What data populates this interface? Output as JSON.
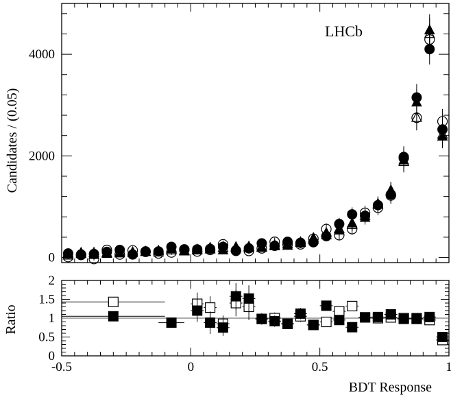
{
  "chart_data": [
    {
      "type": "scatter",
      "panel": "top",
      "ylabel": "Candidates / (0.05)",
      "annotation": "LHCb",
      "xlim": [
        -0.5,
        1.0
      ],
      "ylim": [
        -100,
        5000
      ],
      "yticks": [
        0,
        2000,
        4000
      ],
      "ytick_labels": [
        "0",
        "2000",
        "4000"
      ],
      "grid": false,
      "series": [
        {
          "marker": "filled-circle",
          "x": [
            -0.475,
            -0.425,
            -0.375,
            -0.325,
            -0.275,
            -0.225,
            -0.175,
            -0.125,
            -0.075,
            -0.025,
            0.025,
            0.075,
            0.125,
            0.175,
            0.225,
            0.275,
            0.325,
            0.375,
            0.425,
            0.475,
            0.525,
            0.575,
            0.625,
            0.675,
            0.725,
            0.775,
            0.825,
            0.875,
            0.925,
            0.975
          ],
          "y": [
            80,
            60,
            70,
            110,
            150,
            60,
            110,
            120,
            210,
            150,
            160,
            170,
            210,
            130,
            180,
            280,
            230,
            310,
            290,
            300,
            420,
            660,
            850,
            820,
            1030,
            1240,
            1980,
            3150,
            4100,
            2520
          ]
        },
        {
          "marker": "open-circle",
          "x": [
            -0.475,
            -0.425,
            -0.375,
            -0.325,
            -0.275,
            -0.225,
            -0.175,
            -0.125,
            -0.075,
            -0.025,
            0.025,
            0.075,
            0.125,
            0.175,
            0.225,
            0.275,
            0.325,
            0.375,
            0.425,
            0.475,
            0.525,
            0.575,
            0.625,
            0.675,
            0.725,
            0.775,
            0.825,
            0.875,
            0.925,
            0.975
          ],
          "y": [
            10,
            50,
            -30,
            150,
            60,
            140,
            120,
            80,
            100,
            160,
            120,
            150,
            260,
            140,
            130,
            180,
            310,
            260,
            260,
            370,
            560,
            440,
            560,
            880,
            980,
            1220,
            1960,
            2750,
            4290,
            2680
          ]
        },
        {
          "marker": "filled-triangle",
          "x": [
            -0.475,
            -0.425,
            -0.375,
            -0.325,
            -0.275,
            -0.225,
            -0.175,
            -0.125,
            -0.075,
            -0.025,
            0.025,
            0.075,
            0.125,
            0.175,
            0.225,
            0.275,
            0.325,
            0.375,
            0.425,
            0.475,
            0.525,
            0.575,
            0.625,
            0.675,
            0.725,
            0.775,
            0.825,
            0.875,
            0.925,
            0.975
          ],
          "y": [
            60,
            90,
            50,
            70,
            80,
            90,
            110,
            130,
            160,
            120,
            140,
            190,
            140,
            190,
            180,
            190,
            220,
            230,
            300,
            380,
            480,
            530,
            670,
            780,
            1040,
            1320,
            1910,
            3050,
            4470,
            2380
          ]
        },
        {
          "marker": "open-triangle",
          "x": [
            -0.475,
            -0.425,
            -0.375,
            -0.325,
            -0.275,
            -0.225,
            -0.175,
            -0.125,
            -0.075,
            -0.025,
            0.025,
            0.075,
            0.125,
            0.175,
            0.225,
            0.275,
            0.325,
            0.375,
            0.425,
            0.475,
            0.525,
            0.575,
            0.625,
            0.675,
            0.725,
            0.775,
            0.825,
            0.875,
            0.925,
            0.975
          ],
          "y": [
            40,
            70,
            90,
            90,
            100,
            100,
            110,
            100,
            140,
            130,
            150,
            160,
            190,
            200,
            210,
            200,
            240,
            260,
            290,
            350,
            440,
            560,
            640,
            820,
            1050,
            1300,
            1880,
            2750,
            4400,
            2420
          ]
        }
      ]
    },
    {
      "type": "scatter",
      "panel": "bottom",
      "xlabel": "BDT Response",
      "ylabel": "Ratio",
      "xlim": [
        -0.5,
        1.0
      ],
      "ylim": [
        0,
        2
      ],
      "xticks": [
        -0.5,
        0,
        0.5,
        1
      ],
      "xtick_labels": [
        "-0.5",
        "0",
        "0.5",
        "1"
      ],
      "yticks": [
        0,
        0.5,
        1,
        1.5,
        2
      ],
      "ytick_labels": [
        "0",
        "0.5",
        "1",
        "1.5",
        "2"
      ],
      "reference_line": 1.0,
      "grid": false,
      "series": [
        {
          "marker": "filled-square",
          "x": [
            -0.3,
            -0.075,
            0.025,
            0.075,
            0.125,
            0.175,
            0.225,
            0.275,
            0.325,
            0.375,
            0.425,
            0.475,
            0.525,
            0.575,
            0.625,
            0.675,
            0.725,
            0.775,
            0.825,
            0.875,
            0.925,
            0.975
          ],
          "y": [
            1.05,
            0.88,
            1.2,
            0.88,
            0.75,
            1.58,
            1.52,
            0.98,
            0.92,
            0.85,
            1.12,
            0.82,
            1.33,
            0.95,
            0.76,
            1.02,
            1.03,
            1.1,
            0.98,
            1.0,
            1.03,
            0.5
          ],
          "xerr": [
            0.2,
            0.05,
            0.025,
            0.025,
            0.025,
            0.025,
            0.025,
            0.025,
            0.025,
            0.025,
            0.025,
            0.025,
            0.025,
            0.025,
            0.025,
            0.025,
            0.025,
            0.025,
            0.025,
            0.025,
            0.025,
            0.025
          ],
          "yerr": [
            0.1,
            0.1,
            0.3,
            0.3,
            0.22,
            0.35,
            0.35,
            0.15,
            0.15,
            0.1,
            0.15,
            0.08,
            0.1,
            0.08,
            0.06,
            0.05,
            0.05,
            0.05,
            0.05,
            0.03,
            0.04,
            0.05
          ]
        },
        {
          "marker": "open-square",
          "x": [
            -0.3,
            0.025,
            0.075,
            0.125,
            0.175,
            0.225,
            0.275,
            0.325,
            0.375,
            0.425,
            0.475,
            0.525,
            0.575,
            0.625,
            0.675,
            0.725,
            0.775,
            0.825,
            0.875,
            0.925,
            0.975
          ],
          "y": [
            1.43,
            1.38,
            1.28,
            0.85,
            1.4,
            1.3,
            0.98,
            1.0,
            0.85,
            1.05,
            0.82,
            0.9,
            1.18,
            1.32,
            1.02,
            1.0,
            1.02,
            1.0,
            0.98,
            0.95,
            0.42
          ],
          "xerr": [
            0.2,
            0.025,
            0.025,
            0.025,
            0.025,
            0.025,
            0.025,
            0.025,
            0.025,
            0.025,
            0.025,
            0.025,
            0.025,
            0.025,
            0.025,
            0.025,
            0.025,
            0.025,
            0.025,
            0.025,
            0.025
          ],
          "yerr": [
            0.1,
            0.3,
            0.3,
            0.22,
            0.35,
            0.35,
            0.15,
            0.15,
            0.1,
            0.15,
            0.08,
            0.1,
            0.08,
            0.06,
            0.05,
            0.05,
            0.05,
            0.05,
            0.03,
            0.04,
            0.05
          ]
        }
      ]
    }
  ]
}
